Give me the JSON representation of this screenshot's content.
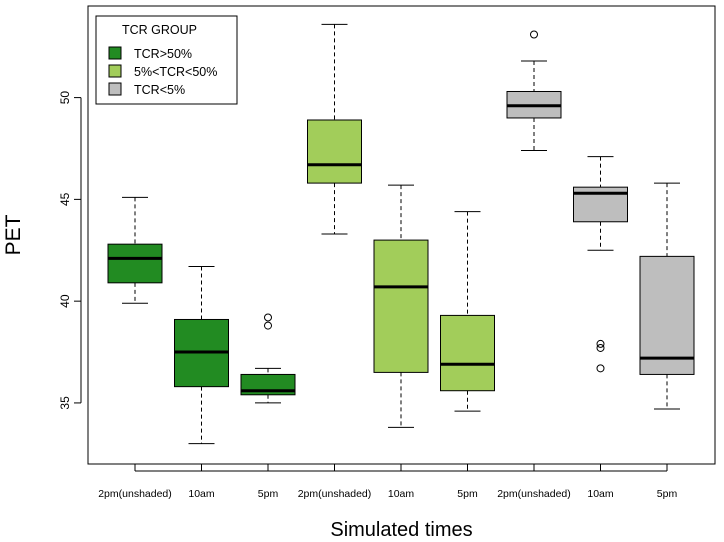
{
  "chart_data": {
    "type": "boxplot",
    "title": "",
    "xlabel": "Simulated times",
    "ylabel": "PET",
    "ylim": [
      32,
      54.5
    ],
    "yticks": [
      35,
      40,
      45,
      50
    ],
    "legend": {
      "title": "TCR GROUP",
      "position": "top-left",
      "entries": [
        {
          "label": "TCR>50%",
          "color": "#228B22"
        },
        {
          "label": "5%<TCR<50%",
          "color": "#A2CD5A"
        },
        {
          "label": "TCR<5%",
          "color": "#BEBEBE"
        }
      ]
    },
    "boxes": [
      {
        "category": "2pm(unshaded)",
        "group": "TCR>50%",
        "color": "#228B22",
        "whisker_low": 39.9,
        "q1": 40.9,
        "median": 42.1,
        "q3": 42.8,
        "whisker_high": 45.1,
        "outliers": []
      },
      {
        "category": "10am",
        "group": "TCR>50%",
        "color": "#228B22",
        "whisker_low": 33.0,
        "q1": 35.8,
        "median": 37.5,
        "q3": 39.1,
        "whisker_high": 41.7,
        "outliers": []
      },
      {
        "category": "5pm",
        "group": "TCR>50%",
        "color": "#228B22",
        "whisker_low": 35.0,
        "q1": 35.4,
        "median": 35.6,
        "q3": 36.4,
        "whisker_high": 36.7,
        "outliers": [
          38.8,
          39.2
        ]
      },
      {
        "category": "2pm(unshaded)",
        "group": "5%<TCR<50%",
        "color": "#A2CD5A",
        "whisker_low": 43.3,
        "q1": 45.8,
        "median": 46.7,
        "q3": 48.9,
        "whisker_high": 53.6,
        "outliers": []
      },
      {
        "category": "10am",
        "group": "5%<TCR<50%",
        "color": "#A2CD5A",
        "whisker_low": 33.8,
        "q1": 36.5,
        "median": 40.7,
        "q3": 43.0,
        "whisker_high": 45.7,
        "outliers": []
      },
      {
        "category": "5pm",
        "group": "5%<TCR<50%",
        "color": "#A2CD5A",
        "whisker_low": 34.6,
        "q1": 35.6,
        "median": 36.9,
        "q3": 39.3,
        "whisker_high": 44.4,
        "outliers": []
      },
      {
        "category": "2pm(unshaded)",
        "group": "TCR<5%",
        "color": "#BEBEBE",
        "whisker_low": 47.4,
        "q1": 49.0,
        "median": 49.6,
        "q3": 50.3,
        "whisker_high": 51.8,
        "outliers": [
          53.1
        ]
      },
      {
        "category": "10am",
        "group": "TCR<5%",
        "color": "#BEBEBE",
        "whisker_low": 42.5,
        "q1": 43.9,
        "median": 45.3,
        "q3": 45.6,
        "whisker_high": 47.1,
        "outliers": [
          37.9,
          37.7,
          36.7
        ]
      },
      {
        "category": "5pm",
        "group": "TCR<5%",
        "color": "#BEBEBE",
        "whisker_low": 34.7,
        "q1": 36.4,
        "median": 37.2,
        "q3": 42.2,
        "whisker_high": 45.8,
        "outliers": []
      }
    ]
  }
}
